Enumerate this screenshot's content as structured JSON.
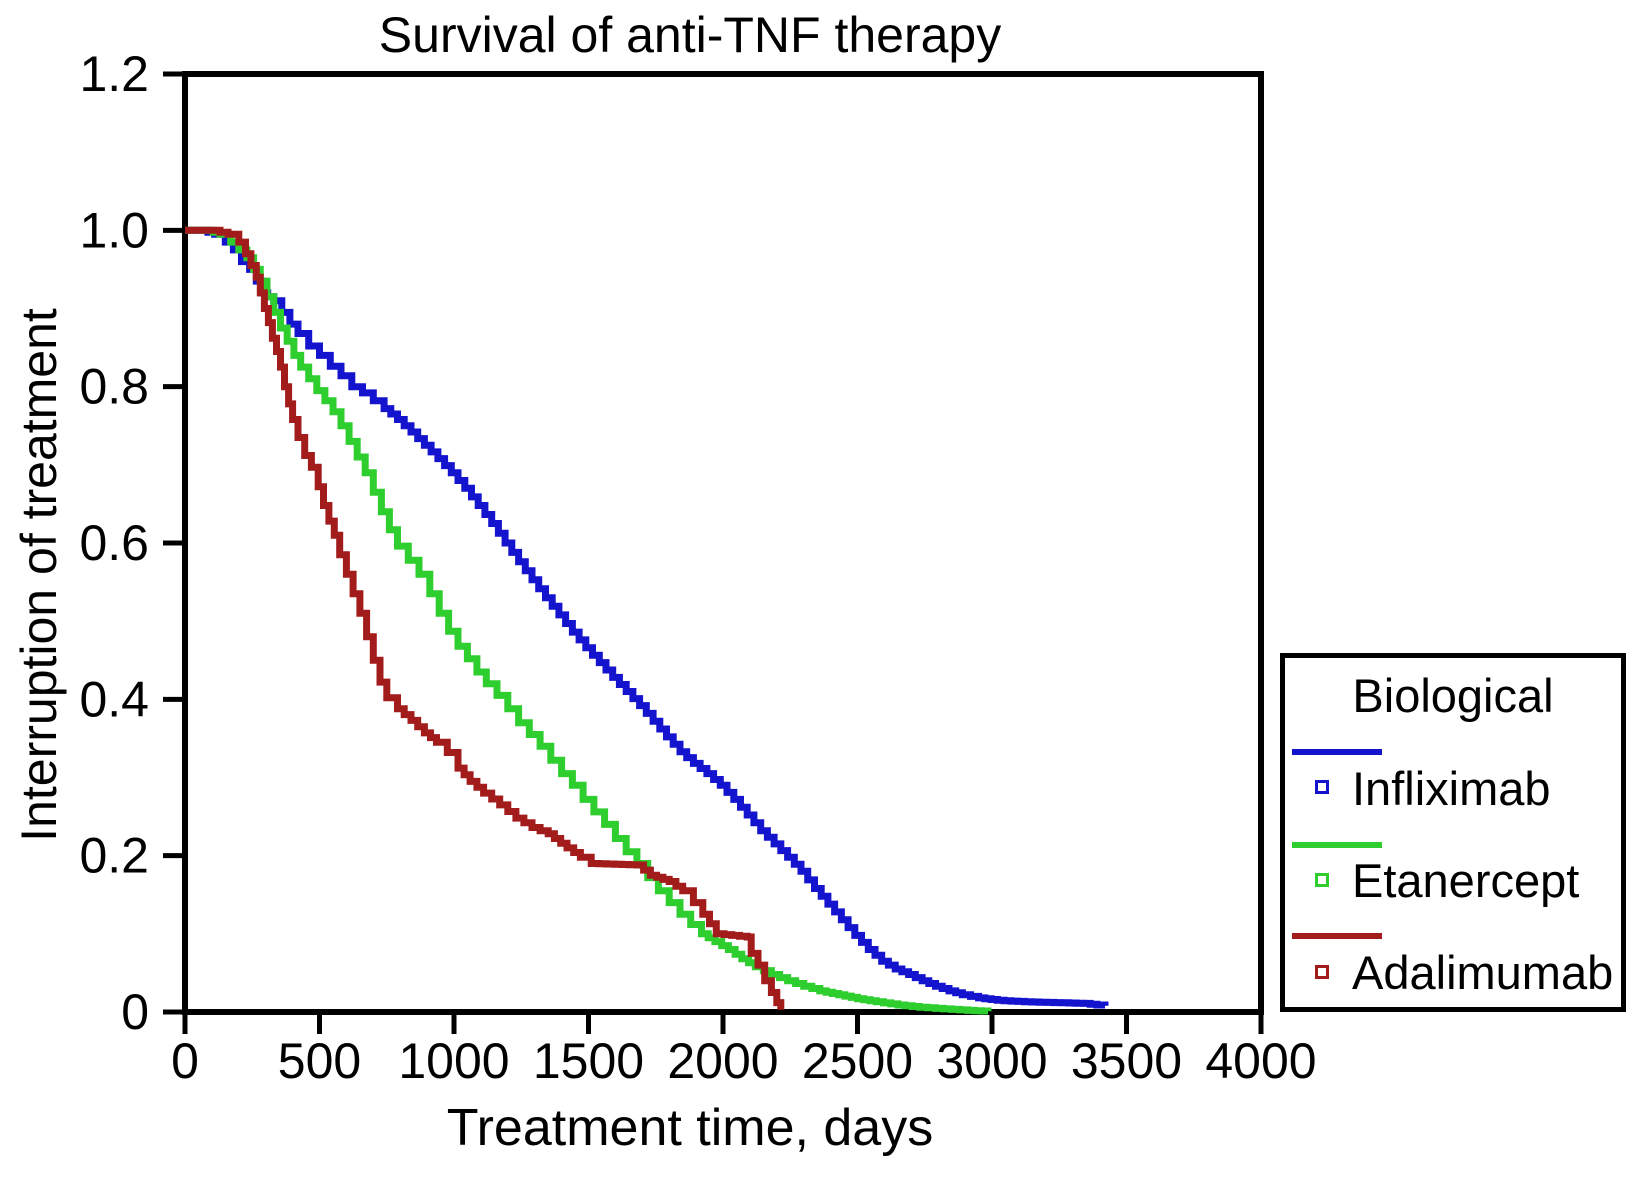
{
  "figure": {
    "title": "Survival of anti-TNF therapy",
    "x_axis_label": "Treatment time, days",
    "y_axis_label": "Interruption of treatment",
    "background_color": "#ffffff",
    "axis_color": "#000000"
  },
  "legend": {
    "title": "Biological",
    "entries": [
      {
        "label": "Infliximab",
        "color": "#1414CE",
        "marker": "open-square"
      },
      {
        "label": "Etanercept",
        "color": "#2FCE2F",
        "marker": "open-square"
      },
      {
        "label": "Adalimumab",
        "color": "#A31C1C",
        "marker": "open-square"
      }
    ]
  },
  "chart_data": {
    "type": "line",
    "subtype": "kaplan-meier-step",
    "title": "Survival of anti-TNF therapy",
    "xlabel": "Treatment time, days",
    "ylabel": "Interruption of treatment",
    "xlim": [
      0,
      4000
    ],
    "ylim": [
      0,
      1.2
    ],
    "x_ticks": [
      0,
      500,
      1000,
      1500,
      2000,
      2500,
      3000,
      3500,
      4000
    ],
    "x_tick_labels": [
      "0",
      "500",
      "1000",
      "1500",
      "2000",
      "2500",
      "3000",
      "3500",
      "4000"
    ],
    "y_ticks": [
      0,
      0.2,
      0.4,
      0.6,
      0.8,
      1.0,
      1.2
    ],
    "y_tick_labels": [
      "0",
      "0.2",
      "0.4",
      "0.6",
      "0.8",
      "1.0",
      "1.2"
    ],
    "grid": false,
    "legend_position": "outside-right",
    "series": [
      {
        "name": "Infliximab",
        "color": "#1414CE",
        "points": [
          [
            0,
            1.0
          ],
          [
            60,
            1.0
          ],
          [
            110,
            0.995
          ],
          [
            150,
            0.985
          ],
          [
            180,
            0.975
          ],
          [
            210,
            0.96
          ],
          [
            240,
            0.95
          ],
          [
            265,
            0.935
          ],
          [
            285,
            0.92
          ],
          [
            330,
            0.91
          ],
          [
            360,
            0.895
          ],
          [
            390,
            0.88
          ],
          [
            420,
            0.868
          ],
          [
            460,
            0.852
          ],
          [
            500,
            0.84
          ],
          [
            540,
            0.826
          ],
          [
            580,
            0.814
          ],
          [
            620,
            0.8
          ],
          [
            660,
            0.792
          ],
          [
            700,
            0.782
          ],
          [
            740,
            0.772
          ],
          [
            790,
            0.758
          ],
          [
            840,
            0.742
          ],
          [
            890,
            0.725
          ],
          [
            940,
            0.708
          ],
          [
            990,
            0.69
          ],
          [
            1040,
            0.67
          ],
          [
            1090,
            0.648
          ],
          [
            1140,
            0.625
          ],
          [
            1190,
            0.6
          ],
          [
            1240,
            0.576
          ],
          [
            1290,
            0.553
          ],
          [
            1340,
            0.53
          ],
          [
            1390,
            0.508
          ],
          [
            1440,
            0.486
          ],
          [
            1490,
            0.466
          ],
          [
            1540,
            0.447
          ],
          [
            1590,
            0.428
          ],
          [
            1640,
            0.41
          ],
          [
            1690,
            0.392
          ],
          [
            1740,
            0.372
          ],
          [
            1790,
            0.352
          ],
          [
            1840,
            0.333
          ],
          [
            1890,
            0.318
          ],
          [
            1940,
            0.305
          ],
          [
            1990,
            0.29
          ],
          [
            2040,
            0.272
          ],
          [
            2090,
            0.252
          ],
          [
            2140,
            0.232
          ],
          [
            2190,
            0.215
          ],
          [
            2240,
            0.198
          ],
          [
            2290,
            0.18
          ],
          [
            2340,
            0.158
          ],
          [
            2390,
            0.138
          ],
          [
            2440,
            0.118
          ],
          [
            2490,
            0.098
          ],
          [
            2540,
            0.08
          ],
          [
            2590,
            0.065
          ],
          [
            2640,
            0.055
          ],
          [
            2690,
            0.048
          ],
          [
            2740,
            0.04
          ],
          [
            2790,
            0.033
          ],
          [
            2840,
            0.027
          ],
          [
            2890,
            0.022
          ],
          [
            2950,
            0.018
          ],
          [
            3020,
            0.015
          ],
          [
            3120,
            0.013
          ],
          [
            3230,
            0.012
          ],
          [
            3340,
            0.011
          ],
          [
            3390,
            0.009
          ],
          [
            3420,
            0.008
          ]
        ]
      },
      {
        "name": "Etanercept",
        "color": "#2FCE2F",
        "points": [
          [
            0,
            1.0
          ],
          [
            80,
            1.0
          ],
          [
            130,
            0.995
          ],
          [
            170,
            0.985
          ],
          [
            200,
            0.975
          ],
          [
            230,
            0.965
          ],
          [
            255,
            0.95
          ],
          [
            280,
            0.935
          ],
          [
            305,
            0.915
          ],
          [
            330,
            0.895
          ],
          [
            355,
            0.875
          ],
          [
            380,
            0.858
          ],
          [
            405,
            0.84
          ],
          [
            430,
            0.825
          ],
          [
            460,
            0.81
          ],
          [
            490,
            0.795
          ],
          [
            520,
            0.782
          ],
          [
            550,
            0.768
          ],
          [
            580,
            0.75
          ],
          [
            610,
            0.73
          ],
          [
            640,
            0.71
          ],
          [
            670,
            0.69
          ],
          [
            700,
            0.665
          ],
          [
            730,
            0.64
          ],
          [
            760,
            0.617
          ],
          [
            790,
            0.596
          ],
          [
            830,
            0.578
          ],
          [
            870,
            0.56
          ],
          [
            910,
            0.535
          ],
          [
            945,
            0.51
          ],
          [
            980,
            0.487
          ],
          [
            1015,
            0.468
          ],
          [
            1050,
            0.452
          ],
          [
            1085,
            0.435
          ],
          [
            1120,
            0.42
          ],
          [
            1160,
            0.405
          ],
          [
            1200,
            0.388
          ],
          [
            1240,
            0.37
          ],
          [
            1280,
            0.355
          ],
          [
            1320,
            0.34
          ],
          [
            1360,
            0.322
          ],
          [
            1400,
            0.305
          ],
          [
            1440,
            0.29
          ],
          [
            1480,
            0.272
          ],
          [
            1520,
            0.256
          ],
          [
            1560,
            0.24
          ],
          [
            1600,
            0.222
          ],
          [
            1640,
            0.205
          ],
          [
            1680,
            0.19
          ],
          [
            1720,
            0.172
          ],
          [
            1760,
            0.155
          ],
          [
            1800,
            0.14
          ],
          [
            1840,
            0.125
          ],
          [
            1880,
            0.112
          ],
          [
            1920,
            0.1
          ],
          [
            1970,
            0.09
          ],
          [
            2020,
            0.08
          ],
          [
            2070,
            0.068
          ],
          [
            2120,
            0.058
          ],
          [
            2180,
            0.048
          ],
          [
            2240,
            0.04
          ],
          [
            2300,
            0.033
          ],
          [
            2360,
            0.027
          ],
          [
            2430,
            0.022
          ],
          [
            2500,
            0.017
          ],
          [
            2570,
            0.013
          ],
          [
            2650,
            0.009
          ],
          [
            2730,
            0.006
          ],
          [
            2820,
            0.004
          ],
          [
            2910,
            0.002
          ],
          [
            2985,
            0.001
          ]
        ]
      },
      {
        "name": "Adalimumab",
        "color": "#A31C1C",
        "points": [
          [
            0,
            1.0
          ],
          [
            100,
            1.0
          ],
          [
            160,
            0.995
          ],
          [
            200,
            0.985
          ],
          [
            225,
            0.97
          ],
          [
            245,
            0.955
          ],
          [
            265,
            0.94
          ],
          [
            280,
            0.92
          ],
          [
            295,
            0.9
          ],
          [
            310,
            0.882
          ],
          [
            325,
            0.862
          ],
          [
            340,
            0.845
          ],
          [
            355,
            0.825
          ],
          [
            370,
            0.8
          ],
          [
            385,
            0.778
          ],
          [
            400,
            0.758
          ],
          [
            420,
            0.735
          ],
          [
            445,
            0.712
          ],
          [
            470,
            0.697
          ],
          [
            495,
            0.672
          ],
          [
            515,
            0.648
          ],
          [
            535,
            0.628
          ],
          [
            555,
            0.61
          ],
          [
            575,
            0.585
          ],
          [
            600,
            0.56
          ],
          [
            625,
            0.535
          ],
          [
            650,
            0.51
          ],
          [
            675,
            0.48
          ],
          [
            700,
            0.45
          ],
          [
            725,
            0.422
          ],
          [
            750,
            0.402
          ],
          [
            790,
            0.388
          ],
          [
            840,
            0.373
          ],
          [
            890,
            0.357
          ],
          [
            935,
            0.345
          ],
          [
            975,
            0.332
          ],
          [
            1015,
            0.312
          ],
          [
            1060,
            0.295
          ],
          [
            1110,
            0.28
          ],
          [
            1170,
            0.265
          ],
          [
            1230,
            0.248
          ],
          [
            1290,
            0.236
          ],
          [
            1350,
            0.228
          ],
          [
            1420,
            0.21
          ],
          [
            1470,
            0.198
          ],
          [
            1510,
            0.19
          ],
          [
            1680,
            0.188
          ],
          [
            1730,
            0.175
          ],
          [
            1800,
            0.167
          ],
          [
            1850,
            0.155
          ],
          [
            1890,
            0.14
          ],
          [
            1925,
            0.125
          ],
          [
            1950,
            0.113
          ],
          [
            1975,
            0.1
          ],
          [
            2090,
            0.096
          ],
          [
            2105,
            0.075
          ],
          [
            2130,
            0.06
          ],
          [
            2155,
            0.04
          ],
          [
            2180,
            0.025
          ],
          [
            2200,
            0.012
          ],
          [
            2215,
            0.003
          ]
        ]
      }
    ]
  }
}
